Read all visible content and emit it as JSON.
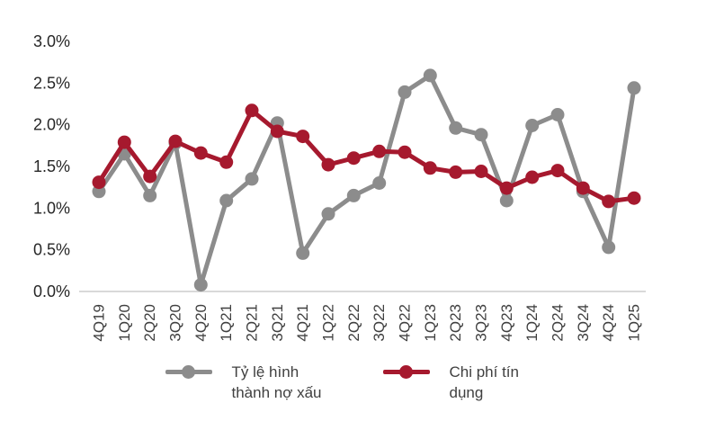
{
  "chart_data": {
    "type": "line",
    "categories": [
      "4Q19",
      "1Q20",
      "2Q20",
      "3Q20",
      "4Q20",
      "1Q21",
      "2Q21",
      "3Q21",
      "4Q21",
      "1Q22",
      "2Q22",
      "3Q22",
      "4Q22",
      "1Q23",
      "2Q23",
      "3Q23",
      "4Q23",
      "1Q24",
      "2Q24",
      "3Q24",
      "4Q24",
      "1Q25"
    ],
    "series": [
      {
        "name": "Tỷ lệ hình thành nợ xấu",
        "color": "#8C8C8C",
        "values": [
          1.2,
          1.65,
          1.15,
          1.78,
          0.08,
          1.09,
          1.35,
          2.02,
          0.46,
          0.93,
          1.15,
          1.3,
          2.39,
          2.59,
          1.96,
          1.88,
          1.09,
          1.99,
          2.12,
          1.2,
          0.53,
          2.44
        ]
      },
      {
        "name": "Chi phí tín dụng",
        "color": "#A6192E",
        "values": [
          1.31,
          1.79,
          1.38,
          1.8,
          1.66,
          1.55,
          2.17,
          1.92,
          1.86,
          1.52,
          1.6,
          1.68,
          1.67,
          1.48,
          1.43,
          1.44,
          1.24,
          1.37,
          1.45,
          1.24,
          1.08,
          1.12
        ]
      }
    ],
    "title": "",
    "xlabel": "",
    "ylabel": "",
    "ylim": [
      0.0,
      3.0
    ],
    "y_tick_step": 0.5,
    "y_ticks": [
      "0.0%",
      "0.5%",
      "1.0%",
      "1.5%",
      "2.0%",
      "2.5%",
      "3.0%"
    ],
    "value_format": "percent",
    "grid": false,
    "legend_position": "bottom"
  },
  "style": {
    "axis_line_color": "#D9D9D9",
    "tick_label_color": "#404040",
    "background": "#FFFFFF"
  }
}
